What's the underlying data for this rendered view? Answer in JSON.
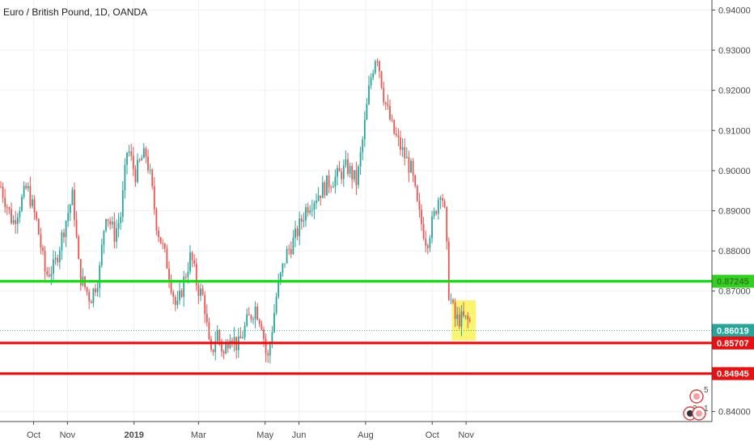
{
  "chart_data": {
    "type": "candlestick",
    "title": "Euro / British Pound, 1D, OANDA",
    "ylim": [
      0.8375,
      0.9425
    ],
    "y_ticks": [
      "0.94000",
      "0.93000",
      "0.92000",
      "0.91000",
      "0.90000",
      "0.89000",
      "0.88000",
      "0.87000",
      "0.84000"
    ],
    "x_ticks": [
      {
        "label": "Oct",
        "month": "2018-10",
        "bold": false
      },
      {
        "label": "Nov",
        "month": "2018-11",
        "bold": false
      },
      {
        "label": "2019",
        "month": "2019-01",
        "bold": true
      },
      {
        "label": "Mar",
        "month": "2019-03",
        "bold": false
      },
      {
        "label": "May",
        "month": "2019-05",
        "bold": false
      },
      {
        "label": "Jun",
        "month": "2019-06",
        "bold": false
      },
      {
        "label": "Aug",
        "month": "2019-08",
        "bold": false
      },
      {
        "label": "Oct",
        "month": "2019-10",
        "bold": false
      },
      {
        "label": "Nov",
        "month": "2019-11",
        "bold": false
      }
    ],
    "path": [
      [
        "2018-09-01",
        0.896
      ],
      [
        "2018-09-12",
        0.887
      ],
      [
        "2018-09-25",
        0.896
      ],
      [
        "2018-10-04",
        0.887
      ],
      [
        "2018-10-12",
        0.874
      ],
      [
        "2018-10-20",
        0.876
      ],
      [
        "2018-10-30",
        0.887
      ],
      [
        "2018-11-06",
        0.894
      ],
      [
        "2018-11-12",
        0.874
      ],
      [
        "2018-11-22",
        0.868
      ],
      [
        "2018-11-30",
        0.874
      ],
      [
        "2018-12-06",
        0.89
      ],
      [
        "2018-12-14",
        0.884
      ],
      [
        "2018-12-20",
        0.889
      ],
      [
        "2018-12-26",
        0.906
      ],
      [
        "2019-01-02",
        0.899
      ],
      [
        "2019-01-08",
        0.903
      ],
      [
        "2019-01-12",
        0.904
      ],
      [
        "2019-01-16",
        0.898
      ],
      [
        "2019-01-22",
        0.886
      ],
      [
        "2019-02-01",
        0.876
      ],
      [
        "2019-02-09",
        0.865
      ],
      [
        "2019-02-15",
        0.872
      ],
      [
        "2019-02-22",
        0.879
      ],
      [
        "2019-02-28",
        0.871
      ],
      [
        "2019-03-06",
        0.868
      ],
      [
        "2019-03-12",
        0.853
      ],
      [
        "2019-03-18",
        0.86
      ],
      [
        "2019-03-24",
        0.854
      ],
      [
        "2019-03-30",
        0.86
      ],
      [
        "2019-04-06",
        0.856
      ],
      [
        "2019-04-14",
        0.862
      ],
      [
        "2019-04-22",
        0.866
      ],
      [
        "2019-04-28",
        0.862
      ],
      [
        "2019-05-03",
        0.852
      ],
      [
        "2019-05-12",
        0.87
      ],
      [
        "2019-05-20",
        0.879
      ],
      [
        "2019-05-28",
        0.883
      ],
      [
        "2019-06-08",
        0.891
      ],
      [
        "2019-06-18",
        0.894
      ],
      [
        "2019-06-28",
        0.897
      ],
      [
        "2019-07-08",
        0.899
      ],
      [
        "2019-07-15",
        0.901
      ],
      [
        "2019-07-24",
        0.897
      ],
      [
        "2019-07-30",
        0.909
      ],
      [
        "2019-08-05",
        0.922
      ],
      [
        "2019-08-11",
        0.93
      ],
      [
        "2019-08-18",
        0.918
      ],
      [
        "2019-08-26",
        0.91
      ],
      [
        "2019-09-05",
        0.904
      ],
      [
        "2019-09-12",
        0.9
      ],
      [
        "2019-09-18",
        0.89
      ],
      [
        "2019-09-26",
        0.882
      ],
      [
        "2019-10-03",
        0.889
      ],
      [
        "2019-10-09",
        0.896
      ],
      [
        "2019-10-13",
        0.888
      ],
      [
        "2019-10-16",
        0.87
      ],
      [
        "2019-10-22",
        0.863
      ],
      [
        "2019-10-30",
        0.863
      ],
      [
        "2019-11-06",
        0.862
      ]
    ],
    "horizontal_levels": [
      {
        "value": 0.87245,
        "label": "0.87245",
        "color": "#00e600",
        "tag_color": "#33d11f",
        "tag_text_color": "#2f7d1e"
      },
      {
        "value": 0.85707,
        "label": "0.85707",
        "color": "#ff0000",
        "tag_color": "#e81010",
        "tag_text_color": "#ffffff"
      },
      {
        "value": 0.84945,
        "label": "0.84945",
        "color": "#ff0000",
        "tag_color": "#e81010",
        "tag_text_color": "#ffffff"
      }
    ],
    "last_price": {
      "value": 0.86019,
      "label": "0.86019",
      "color": "#26a69a"
    },
    "highlight_box": {
      "start": "2019-10-19",
      "end": "2019-11-10",
      "y_low": 0.8577,
      "y_high": 0.8677,
      "color": "#f9f24e"
    },
    "colors": {
      "up": "#26a69a",
      "down": "#ef5350",
      "grid": "#eef0f3",
      "axis": "#4a4a4a"
    },
    "grid": true
  },
  "badges": {
    "top": {
      "icon": "ideas-icon",
      "count": "5"
    },
    "bottom_left": {
      "icon": "ideas-icon",
      "count": "3"
    },
    "bottom_right": {
      "icon": "ideas-icon",
      "count": "1"
    }
  }
}
